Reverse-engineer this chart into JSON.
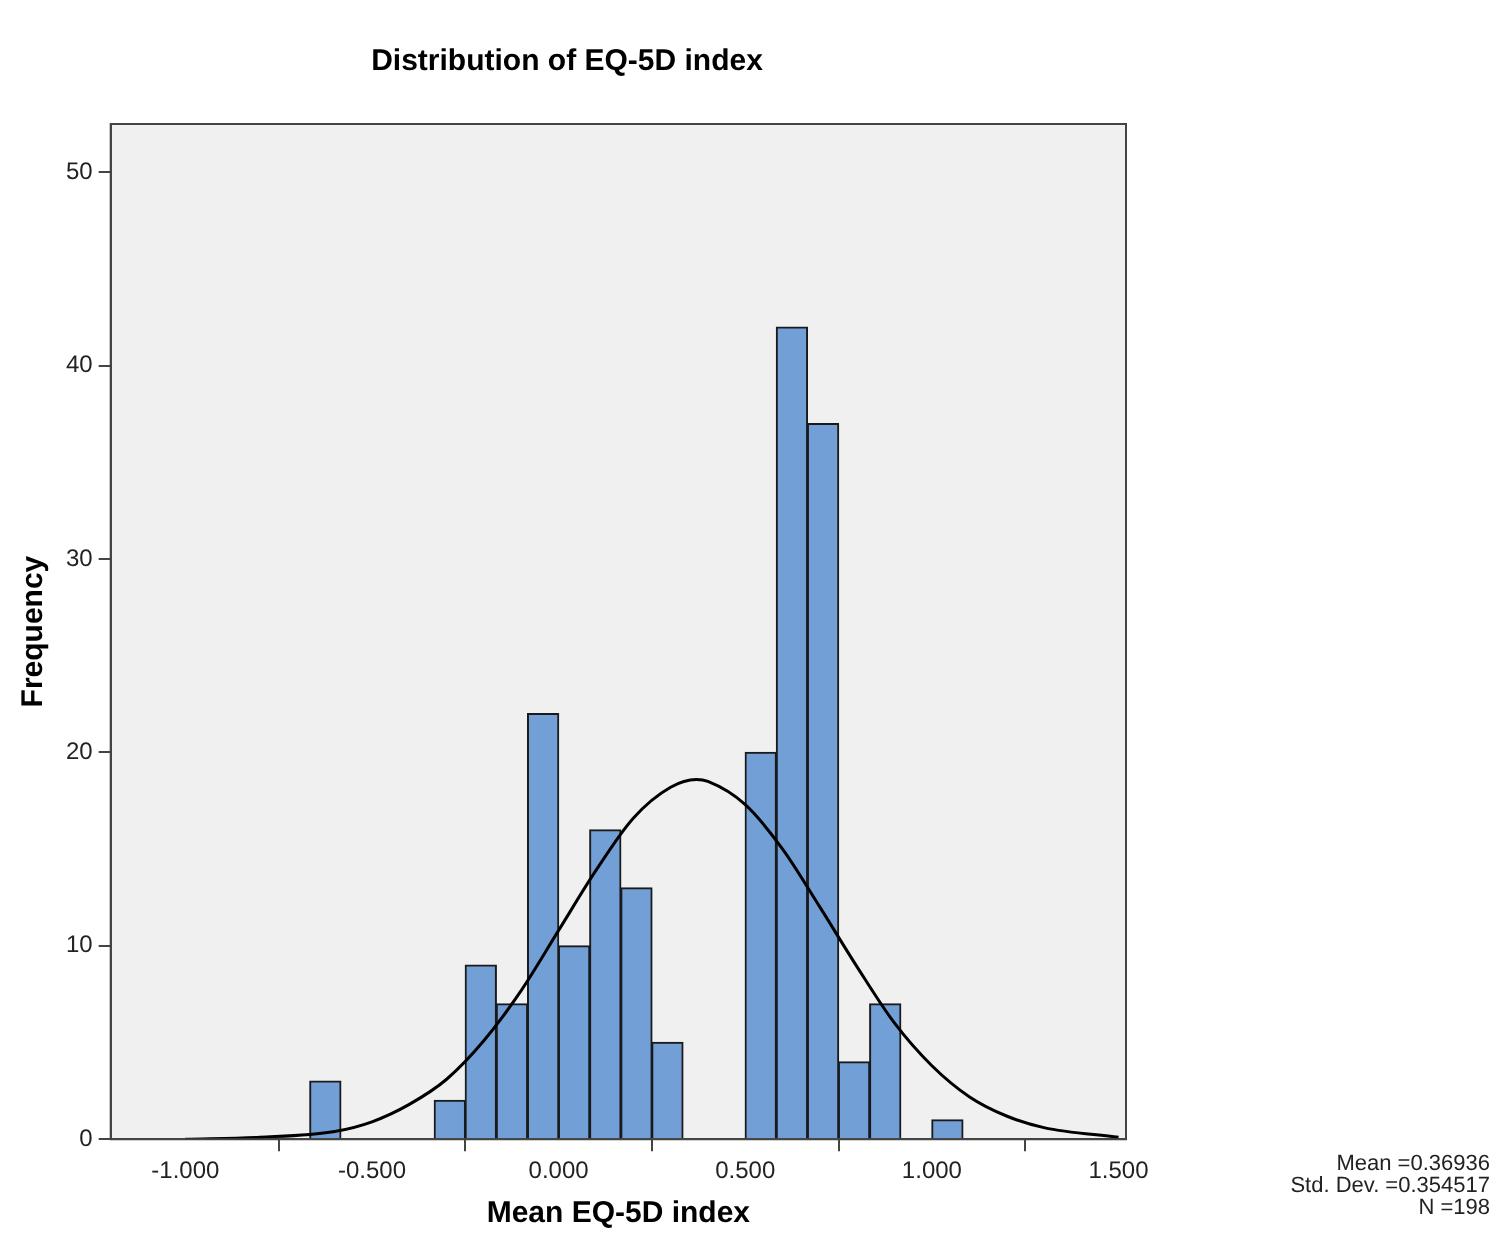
{
  "chart_data": {
    "type": "histogram",
    "title": "Distribution of EQ-5D index",
    "xlabel": "Mean EQ-5D index",
    "ylabel": "Frequency",
    "bins": [
      -0.667,
      -0.583,
      -0.5,
      -0.417,
      -0.333,
      -0.25,
      -0.167,
      -0.083,
      0,
      0.083,
      0.167,
      0.25,
      0.333,
      0.417,
      0.5,
      0.583,
      0.667,
      0.75,
      0.833,
      0.917,
      1.0,
      1.083
    ],
    "values": [
      3,
      0,
      0,
      0,
      2,
      9,
      7,
      22,
      10,
      16,
      13,
      5,
      0,
      0,
      20,
      42,
      37,
      4,
      7,
      0,
      1
    ],
    "color": "#729fd6",
    "series": [
      {
        "type": "line",
        "color": "#000000",
        "x": [
          -1,
          -0.8,
          -0.6,
          -0.5,
          -0.4,
          -0.3,
          -0.2,
          -0.1,
          0,
          0.1,
          0.2,
          0.3,
          0.369,
          0.4,
          0.5,
          0.6,
          0.7,
          0.8,
          0.9,
          1.0,
          1.1,
          1.2,
          1.3,
          1.5
        ],
        "values": [
          0,
          0.1,
          0.4,
          0.9,
          1.8,
          3.1,
          5.1,
          7.7,
          10.8,
          13.9,
          16.6,
          18.2,
          18.6,
          18.5,
          17.3,
          15,
          12,
          8.9,
          6,
          3.8,
          2.2,
          1.2,
          0.6,
          0.1
        ]
      }
    ],
    "xlim": [
      -1.2,
      1.52
    ],
    "xticks": [
      {
        "value": -1,
        "label": "-1.000"
      },
      {
        "value": -0.5,
        "label": "-0.500"
      },
      {
        "value": 0,
        "label": "0.000"
      },
      {
        "value": 0.5,
        "label": "0.500"
      },
      {
        "value": 1,
        "label": "1.000"
      },
      {
        "value": 1.5,
        "label": "1.500"
      }
    ],
    "ylim": [
      0,
      52.5
    ],
    "yticks": [
      0,
      10,
      20,
      30,
      40,
      50
    ],
    "grid": false,
    "legend": false,
    "marker": "none",
    "annotations": [
      "Mean =0.36936",
      "Std. Dev. =0.354517",
      "N =198"
    ]
  }
}
